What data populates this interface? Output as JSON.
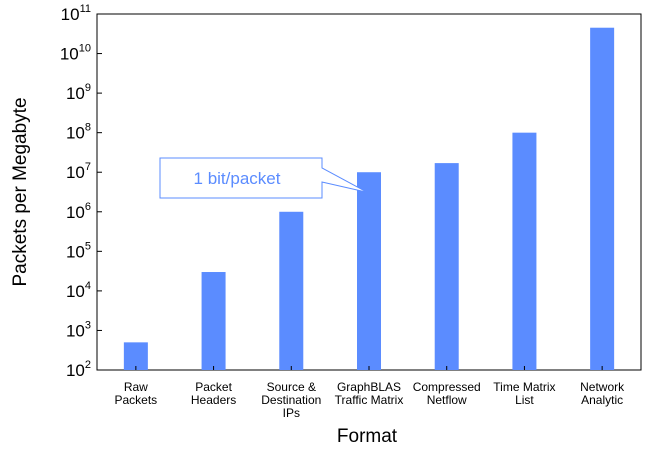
{
  "chart_data": {
    "type": "bar",
    "title": "",
    "xlabel": "Format",
    "ylabel": "Packets per Megabyte",
    "yscale": "log",
    "ylim": [
      100,
      100000000000
    ],
    "yticks": [
      {
        "base": "10",
        "exp": "2"
      },
      {
        "base": "10",
        "exp": "3"
      },
      {
        "base": "10",
        "exp": "4"
      },
      {
        "base": "10",
        "exp": "5"
      },
      {
        "base": "10",
        "exp": "6"
      },
      {
        "base": "10",
        "exp": "7"
      },
      {
        "base": "10",
        "exp": "8"
      },
      {
        "base": "10",
        "exp": "9"
      },
      {
        "base": "10",
        "exp": "10"
      },
      {
        "base": "10",
        "exp": "11"
      }
    ],
    "categories": [
      [
        "Raw",
        "Packets"
      ],
      [
        "Packet",
        "Headers"
      ],
      [
        "Source &",
        "Destination",
        "IPs"
      ],
      [
        "GraphBLAS",
        "Traffic Matrix"
      ],
      [
        "Compressed",
        "Netflow"
      ],
      [
        "Time Matrix",
        "List"
      ],
      [
        "Network",
        "Analytic"
      ]
    ],
    "values": [
      500,
      30000,
      1000000,
      10000000,
      17000000,
      100000000,
      45000000000
    ],
    "bar_color": "#5b8cff",
    "grid": false,
    "legend": "none",
    "annotation": {
      "text": "1 bit/packet",
      "points_to_category": 3,
      "border_color": "#5b8cff",
      "text_color": "#5b8cff"
    }
  }
}
